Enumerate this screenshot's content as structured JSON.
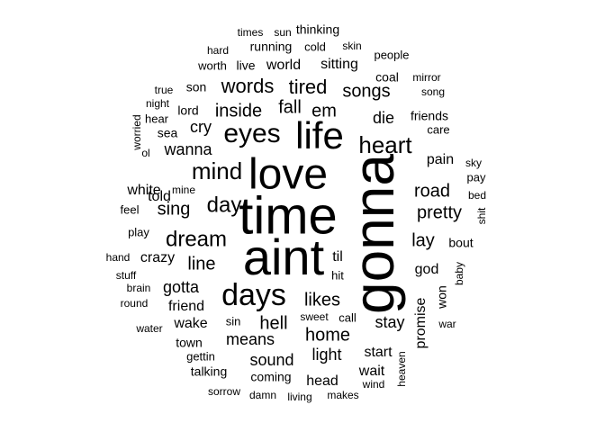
{
  "word_cloud": {
    "text_color": "#000000",
    "background_color": "#ffffff",
    "words": [
      {
        "text": "gonna"
      },
      {
        "text": "time"
      },
      {
        "text": "aint"
      },
      {
        "text": "love"
      },
      {
        "text": "life"
      },
      {
        "text": "days"
      },
      {
        "text": "eyes"
      },
      {
        "text": "heart"
      },
      {
        "text": "mind"
      },
      {
        "text": "day"
      },
      {
        "text": "dream"
      },
      {
        "text": "words"
      },
      {
        "text": "tired"
      },
      {
        "text": "songs"
      },
      {
        "text": "inside"
      },
      {
        "text": "fall"
      },
      {
        "text": "em"
      },
      {
        "text": "die"
      },
      {
        "text": "road"
      },
      {
        "text": "pretty"
      },
      {
        "text": "lay"
      },
      {
        "text": "likes"
      },
      {
        "text": "line"
      },
      {
        "text": "home"
      },
      {
        "text": "hell"
      },
      {
        "text": "means"
      },
      {
        "text": "sound"
      },
      {
        "text": "stay"
      },
      {
        "text": "sing"
      },
      {
        "text": "wanna"
      },
      {
        "text": "cry"
      },
      {
        "text": "gotta"
      },
      {
        "text": "light"
      },
      {
        "text": "head"
      },
      {
        "text": "start"
      },
      {
        "text": "wait"
      },
      {
        "text": "promise"
      },
      {
        "text": "pain"
      },
      {
        "text": "world"
      },
      {
        "text": "sitting"
      },
      {
        "text": "running"
      },
      {
        "text": "thinking"
      },
      {
        "text": "friends"
      },
      {
        "text": "god"
      },
      {
        "text": "crazy"
      },
      {
        "text": "wake"
      },
      {
        "text": "friend"
      },
      {
        "text": "town"
      },
      {
        "text": "coming"
      },
      {
        "text": "bout"
      },
      {
        "text": "won"
      },
      {
        "text": "til"
      },
      {
        "text": "told"
      },
      {
        "text": "white"
      },
      {
        "text": "sea"
      },
      {
        "text": "lord"
      },
      {
        "text": "son"
      },
      {
        "text": "coal"
      },
      {
        "text": "people"
      },
      {
        "text": "care"
      },
      {
        "text": "live"
      },
      {
        "text": "hit"
      },
      {
        "text": "call"
      },
      {
        "text": "worth"
      },
      {
        "text": "hard"
      },
      {
        "text": "cold"
      },
      {
        "text": "times"
      },
      {
        "text": "sun"
      },
      {
        "text": "skin"
      },
      {
        "text": "mirror"
      },
      {
        "text": "song"
      },
      {
        "text": "true"
      },
      {
        "text": "night"
      },
      {
        "text": "hear"
      },
      {
        "text": "worried"
      },
      {
        "text": "ol"
      },
      {
        "text": "mine"
      },
      {
        "text": "feel"
      },
      {
        "text": "play"
      },
      {
        "text": "hand"
      },
      {
        "text": "stuff"
      },
      {
        "text": "brain"
      },
      {
        "text": "round"
      },
      {
        "text": "water"
      },
      {
        "text": "sin"
      },
      {
        "text": "sweet"
      },
      {
        "text": "war"
      },
      {
        "text": "baby"
      },
      {
        "text": "heaven"
      },
      {
        "text": "wind"
      },
      {
        "text": "makes"
      },
      {
        "text": "living"
      },
      {
        "text": "damn"
      },
      {
        "text": "sorrow"
      },
      {
        "text": "talking"
      },
      {
        "text": "gettin"
      },
      {
        "text": "sky"
      },
      {
        "text": "pay"
      },
      {
        "text": "bed"
      },
      {
        "text": "shit"
      }
    ]
  }
}
